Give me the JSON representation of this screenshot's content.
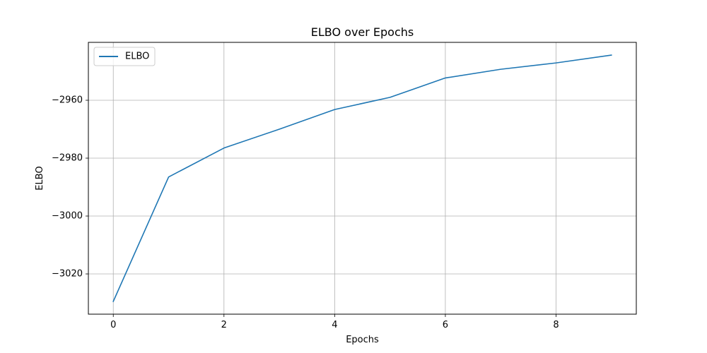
{
  "chart_data": {
    "type": "line",
    "title": "ELBO over Epochs",
    "xlabel": "Epochs",
    "ylabel": "ELBO",
    "x": [
      0,
      1,
      2,
      3,
      4,
      5,
      6,
      7,
      8,
      9
    ],
    "series": [
      {
        "name": "ELBO",
        "color": "#1f77b4",
        "values": [
          -3029.5,
          -2986.5,
          -2976.5,
          -2970.0,
          -2963.2,
          -2959.0,
          -2952.3,
          -2949.3,
          -2947.1,
          -2944.4
        ]
      }
    ],
    "xlim": [
      -0.45,
      9.45
    ],
    "ylim": [
      -3033.9,
      -2940.0
    ],
    "xticks": [
      0,
      2,
      4,
      6,
      8
    ],
    "xtick_labels": [
      "0",
      "2",
      "4",
      "6",
      "8"
    ],
    "yticks": [
      -3020,
      -3000,
      -2980,
      -2960
    ],
    "ytick_labels": [
      "−3020",
      "−3000",
      "−2980",
      "−2960"
    ],
    "grid": true,
    "legend_position": "upper-left"
  }
}
